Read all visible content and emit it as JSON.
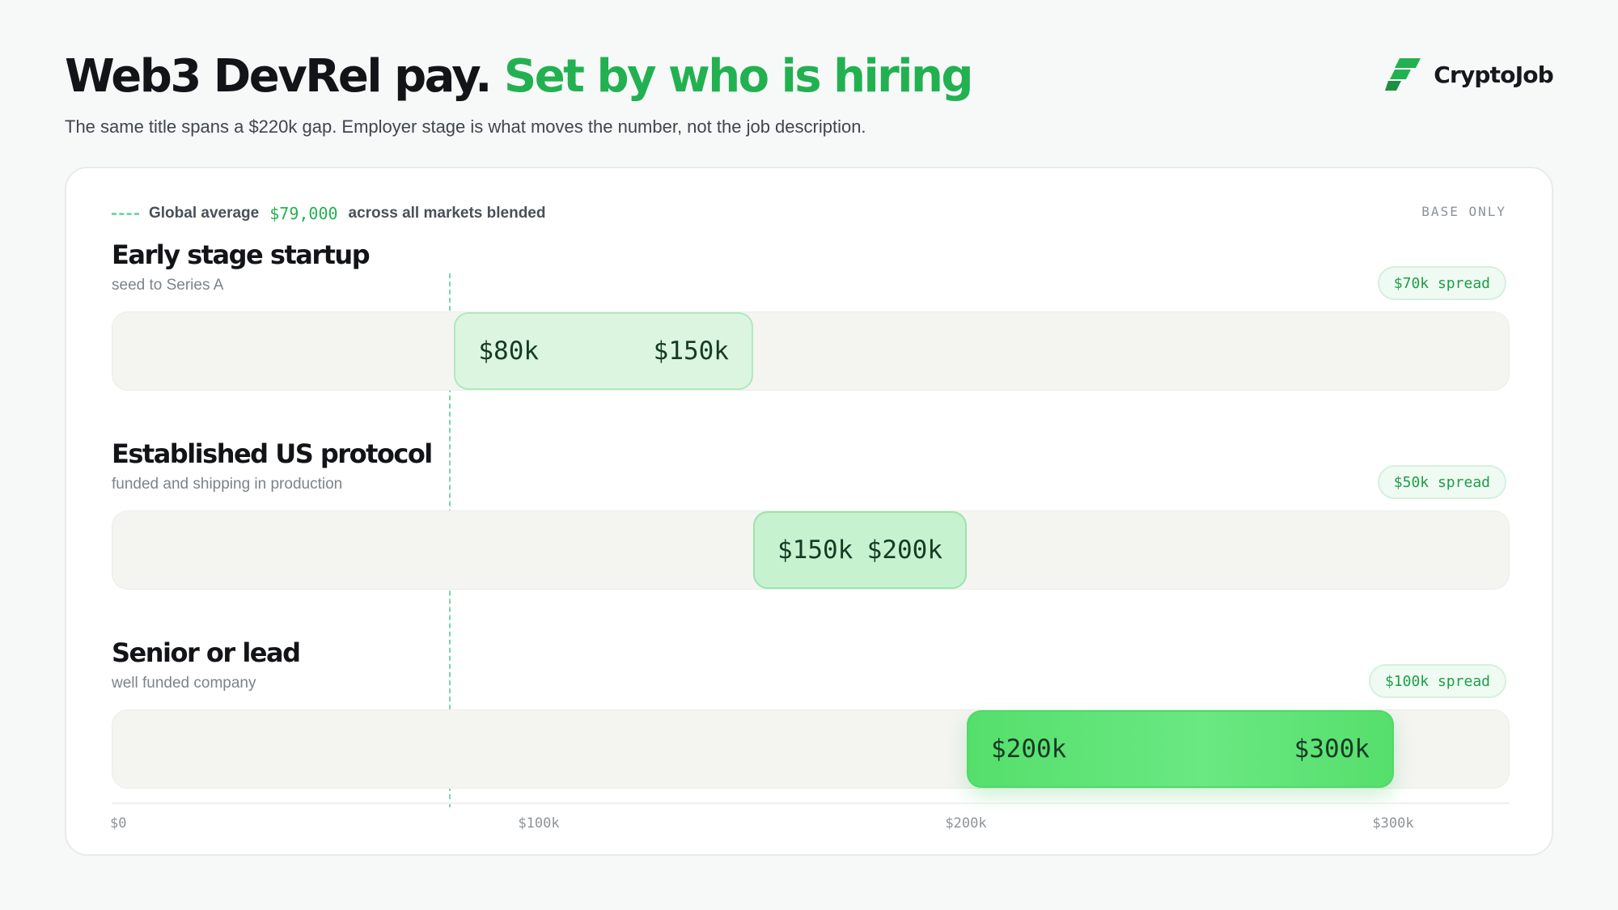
{
  "header": {
    "title_main": "Web3 DevRel pay.",
    "title_accent": "Set by who is hiring",
    "subtitle": "The same title spans a $220k gap. Employer stage is what moves the number, not the job description."
  },
  "brand": {
    "name": "CryptoJob",
    "icon": "cryptojob-logo-icon",
    "color": "#22b150"
  },
  "legend": {
    "label": "Global average",
    "value": "$79,000",
    "suffix": "across all markets blended",
    "badge": "BASE ONLY"
  },
  "chart_data": {
    "type": "bar",
    "orientation": "horizontal-range",
    "unit": "USD",
    "xlim": [
      0,
      320000
    ],
    "ticks": [
      {
        "value": 0,
        "label": "$0"
      },
      {
        "value": 100000,
        "label": "$100k"
      },
      {
        "value": 200000,
        "label": "$200k"
      },
      {
        "value": 300000,
        "label": "$300k"
      }
    ],
    "reference_line": {
      "value": 79000,
      "label": "Global average",
      "style": "dashed"
    },
    "rows": [
      {
        "title": "Early stage startup",
        "subtitle": "seed to Series A",
        "min": 80000,
        "max": 150000,
        "min_label": "$80k",
        "max_label": "$150k",
        "spread_label": "$70k spread"
      },
      {
        "title": "Established US protocol",
        "subtitle": "funded and shipping in production",
        "min": 150000,
        "max": 200000,
        "min_label": "$150k",
        "max_label": "$200k",
        "spread_label": "$50k spread"
      },
      {
        "title": "Senior or lead",
        "subtitle": "well funded company",
        "min": 200000,
        "max": 300000,
        "min_label": "$200k",
        "max_label": "$300k",
        "spread_label": "$100k spread"
      }
    ],
    "grid": false
  },
  "colors": {
    "accent": "#22b150",
    "text": "#121417",
    "muted": "#7c838a"
  }
}
